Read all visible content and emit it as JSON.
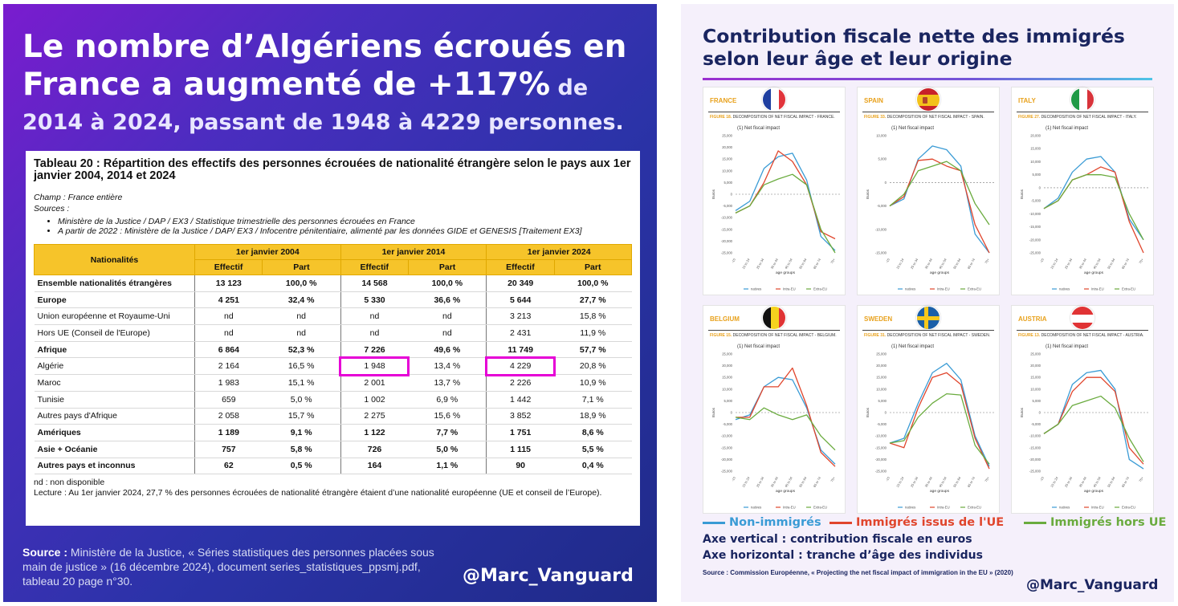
{
  "left": {
    "headline_line1": "Le nombre d’Algériens écroués en",
    "headline_line2": "France a augmenté de +117%",
    "headline_tail": " de",
    "headline_line3": "2014 à 2024, passant de 1948 à 4229 personnes.",
    "doc": {
      "title": "Tableau 20 : Répartition des effectifs des personnes écrouées de nationalité étrangère selon le pays aux 1er janvier 2004, 2014 et 2024",
      "champ": "Champ : France entière",
      "sources_label": "Sources :",
      "sources": [
        "Ministère de la Justice / DAP / EX3 / Statistique trimestrielle des personnes écrouées en France",
        "A partir de 2022 : Ministère de la Justice / DAP/ EX3 / Infocentre pénitentiaire, alimenté par les données GIDE et GENESIS [Traitement EX3]"
      ],
      "table": {
        "col_nat": "Nationalités",
        "years": [
          "1er janvier 2004",
          "1er janvier 2014",
          "1er janvier 2024"
        ],
        "sub_effectif": "Effectif",
        "sub_part": "Part",
        "rows": [
          {
            "label": "Ensemble nationalités étrangères",
            "bold": true,
            "v": [
              "13 123",
              "100,0 %",
              "14 568",
              "100,0 %",
              "20 349",
              "100,0 %"
            ]
          },
          {
            "label": "Europe",
            "bold": true,
            "v": [
              "4 251",
              "32,4 %",
              "5 330",
              "36,6 %",
              "5 644",
              "27,7 %"
            ]
          },
          {
            "label": "Union européenne et Royaume-Uni",
            "bold": false,
            "v": [
              "nd",
              "nd",
              "nd",
              "nd",
              "3 213",
              "15,8 %"
            ]
          },
          {
            "label": "Hors UE (Conseil de l'Europe)",
            "bold": false,
            "v": [
              "nd",
              "nd",
              "nd",
              "nd",
              "2 431",
              "11,9 %"
            ]
          },
          {
            "label": "Afrique",
            "bold": true,
            "v": [
              "6 864",
              "52,3 %",
              "7 226",
              "49,6 %",
              "11 749",
              "57,7 %"
            ]
          },
          {
            "label": "Algérie",
            "bold": false,
            "v": [
              "2 164",
              "16,5 %",
              "1 948",
              "13,4 %",
              "4 229",
              "20,8 %"
            ]
          },
          {
            "label": "Maroc",
            "bold": false,
            "v": [
              "1 983",
              "15,1 %",
              "2 001",
              "13,7 %",
              "2 226",
              "10,9 %"
            ]
          },
          {
            "label": "Tunisie",
            "bold": false,
            "v": [
              "659",
              "5,0 %",
              "1 002",
              "6,9 %",
              "1 442",
              "7,1 %"
            ]
          },
          {
            "label": "Autres pays d'Afrique",
            "bold": false,
            "v": [
              "2 058",
              "15,7 %",
              "2 275",
              "15,6 %",
              "3 852",
              "18,9 %"
            ]
          },
          {
            "label": "Amériques",
            "bold": true,
            "v": [
              "1 189",
              "9,1 %",
              "1 122",
              "7,7 %",
              "1 751",
              "8,6 %"
            ]
          },
          {
            "label": "Asie + Océanie",
            "bold": true,
            "v": [
              "757",
              "5,8 %",
              "726",
              "5,0 %",
              "1 115",
              "5,5 %"
            ]
          },
          {
            "label": "Autres pays et inconnus",
            "bold": true,
            "v": [
              "62",
              "0,5 %",
              "164",
              "1,1 %",
              "90",
              "0,4 %"
            ]
          }
        ]
      },
      "nd_note": "nd : non disponible",
      "lecture": "Lecture : Au 1er janvier 2024, 27,7 % des personnes écrouées de nationalité étrangère étaient d’une nationalité européenne (UE et conseil de l’Europe)."
    },
    "source_label": "Source :",
    "source_text": " Ministère de la Justice, « Séries statistiques des personnes placées sous main de justice » (16 décembre 2024), document series_statistiques_ppsmj.pdf, tableau 20 page n°30.",
    "handle": "@Marc_Vanguard"
  },
  "right": {
    "title_line1": "Contribution fiscale nette des immigrés",
    "title_line2": "selon leur âge et leur origine",
    "card_subtitle": "(1) Net fiscal impact",
    "x_axis_label": "age groups",
    "y_axis_label": "Euros",
    "legend_mini": [
      "natives",
      "Intra-EU",
      "Extra-EU"
    ],
    "series_colors": [
      "#3a9bd5",
      "#e0452c",
      "#6aab3e"
    ],
    "cards": [
      {
        "name": "FRANCE",
        "fig": "FIGURE 18.",
        "fig_text": "DECOMPOSITION OF NET FISCAL IMPACT - FRANCE.",
        "flag": "fr"
      },
      {
        "name": "SPAIN",
        "fig": "FIGURE 33.",
        "fig_text": "DECOMPOSITION OF NET FISCAL IMPACT - SPAIN.",
        "flag": "es"
      },
      {
        "name": "ITALY",
        "fig": "FIGURE 27.",
        "fig_text": "DECOMPOSITION OF NET FISCAL IMPACT - ITALY.",
        "flag": "it"
      },
      {
        "name": "BELGIUM",
        "fig": "FIGURE 15.",
        "fig_text": "DECOMPOSITION OF NET FISCAL IMPACT - BELGIUM.",
        "flag": "be"
      },
      {
        "name": "SWEDEN",
        "fig": "FIGURE 31.",
        "fig_text": "DECOMPOSITION OF NET FISCAL IMPACT - SWEDEN.",
        "flag": "se"
      },
      {
        "name": "AUSTRIA",
        "fig": "FIGURE 13.",
        "fig_text": "DECOMPOSITION OF NET FISCAL IMPACT - AUSTRIA.",
        "flag": "at"
      }
    ],
    "legend": [
      {
        "label": "Non-immigrés",
        "color": "#3a9bd5"
      },
      {
        "label": "Immigrés issus de l'UE",
        "color": "#e0452c"
      },
      {
        "label": "Immigrés hors UE",
        "color": "#6aab3e"
      }
    ],
    "axis_vertical": "Axe vertical : contribution fiscale en euros",
    "axis_horizontal": "Axe horizontal : tranche d’âge des individus",
    "source": "Source : Commission Européenne, « Projecting the net fiscal impact of immigration in the EU » (2020)",
    "handle": "@Marc_Vanguard"
  },
  "chart_data": [
    {
      "type": "line",
      "title": "FRANCE",
      "ylabel": "Euros",
      "xlabel": "age groups",
      "categories": [
        "-15",
        "15 to 24",
        "25 to 34",
        "35 to 44",
        "45 to 54",
        "55 to 64",
        "65 to 74",
        "75+"
      ],
      "ylim": [
        -25000,
        25000
      ],
      "yticks": [
        -25000,
        -20000,
        -15000,
        -10000,
        -5000,
        0,
        5000,
        10000,
        15000,
        20000,
        25000
      ],
      "series": [
        {
          "name": "natives",
          "values": [
            -7000,
            -3000,
            11000,
            16000,
            17500,
            6000,
            -18000,
            -24000
          ]
        },
        {
          "name": "Intra-EU",
          "values": [
            -8000,
            -5000,
            5000,
            18500,
            14000,
            4000,
            -16000,
            -19000
          ]
        },
        {
          "name": "Extra-EU",
          "values": [
            -8000,
            -5000,
            4000,
            6500,
            8500,
            4000,
            -15000,
            -25000
          ]
        }
      ]
    },
    {
      "type": "line",
      "title": "SPAIN",
      "ylabel": "Euros",
      "xlabel": "age groups",
      "categories": [
        "-15",
        "15 to 24",
        "25 to 34",
        "35 to 44",
        "45 to 54",
        "55 to 64",
        "65 to 74",
        "75+"
      ],
      "ylim": [
        -15000,
        10000
      ],
      "yticks": [
        -15000,
        -10000,
        -5000,
        0,
        5000,
        10000
      ],
      "series": [
        {
          "name": "natives",
          "values": [
            -5000,
            -3500,
            5000,
            7800,
            7000,
            3500,
            -11000,
            -15000
          ]
        },
        {
          "name": "Intra-EU",
          "values": [
            -5000,
            -3000,
            4700,
            5000,
            3500,
            2500,
            -9000,
            -15000
          ]
        },
        {
          "name": "Extra-EU",
          "values": [
            -5000,
            -2500,
            2500,
            3500,
            4500,
            2500,
            -4500,
            -9000
          ]
        }
      ]
    },
    {
      "type": "line",
      "title": "ITALY",
      "ylabel": "Euros",
      "xlabel": "age groups",
      "categories": [
        "-15",
        "15 to 24",
        "25 to 34",
        "35 to 44",
        "45 to 54",
        "55 to 64",
        "65 to 74",
        "75+"
      ],
      "ylim": [
        -25000,
        20000
      ],
      "yticks": [
        -25000,
        -20000,
        -15000,
        -10000,
        -5000,
        0,
        5000,
        10000,
        15000,
        20000
      ],
      "series": [
        {
          "name": "natives",
          "values": [
            -8000,
            -4000,
            6000,
            11000,
            12000,
            6000,
            -12000,
            -20000
          ]
        },
        {
          "name": "Intra-EU",
          "values": [
            -8000,
            -5000,
            3000,
            5000,
            8000,
            6000,
            -13000,
            -25000
          ]
        },
        {
          "name": "Extra-EU",
          "values": [
            -8000,
            -5000,
            3000,
            5000,
            5000,
            4000,
            -10000,
            -20000
          ]
        }
      ]
    },
    {
      "type": "line",
      "title": "BELGIUM",
      "ylabel": "Euros",
      "xlabel": "age groups",
      "categories": [
        "-15",
        "15 to 24",
        "25 to 34",
        "35 to 44",
        "45 to 54",
        "55 to 64",
        "65 to 74",
        "75+"
      ],
      "ylim": [
        -25000,
        25000
      ],
      "yticks": [
        -25000,
        -20000,
        -15000,
        -10000,
        -5000,
        0,
        5000,
        10000,
        15000,
        20000,
        25000
      ],
      "series": [
        {
          "name": "natives",
          "values": [
            -3000,
            -1000,
            11000,
            15000,
            14000,
            2000,
            -16000,
            -22000
          ]
        },
        {
          "name": "Intra-EU",
          "values": [
            -2000,
            -2000,
            11000,
            11000,
            19000,
            3000,
            -17000,
            -23000
          ]
        },
        {
          "name": "Extra-EU",
          "values": [
            -2000,
            -3000,
            2000,
            -1000,
            -3000,
            -1000,
            -10000,
            -16000
          ]
        }
      ]
    },
    {
      "type": "line",
      "title": "SWEDEN",
      "ylabel": "Euros",
      "xlabel": "age groups",
      "categories": [
        "-15",
        "15 to 24",
        "25 to 34",
        "35 to 44",
        "45 to 54",
        "55 to 64",
        "65 to 74",
        "75+"
      ],
      "ylim": [
        -25000,
        25000
      ],
      "yticks": [
        -25000,
        -20000,
        -15000,
        -10000,
        -5000,
        0,
        5000,
        10000,
        15000,
        20000,
        25000
      ],
      "series": [
        {
          "name": "natives",
          "values": [
            -13000,
            -11000,
            4000,
            17000,
            21000,
            14000,
            -10000,
            -23000
          ]
        },
        {
          "name": "Intra-EU",
          "values": [
            -13000,
            -15000,
            2000,
            15000,
            17000,
            12000,
            -11000,
            -24000
          ]
        },
        {
          "name": "Extra-EU",
          "values": [
            -13000,
            -12000,
            -2000,
            4000,
            8000,
            7500,
            -14000,
            -22000
          ]
        }
      ]
    },
    {
      "type": "line",
      "title": "AUSTRIA",
      "ylabel": "Euros",
      "xlabel": "age groups",
      "categories": [
        "-15",
        "15 to 24",
        "25 to 34",
        "35 to 44",
        "45 to 54",
        "55 to 64",
        "65 to 74",
        "75+"
      ],
      "ylim": [
        -25000,
        25000
      ],
      "yticks": [
        -25000,
        -20000,
        -15000,
        -10000,
        -5000,
        0,
        5000,
        10000,
        15000,
        20000,
        25000
      ],
      "series": [
        {
          "name": "natives",
          "values": [
            -9000,
            -5000,
            12000,
            17000,
            18000,
            10000,
            -20000,
            -24000
          ]
        },
        {
          "name": "Intra-EU",
          "values": [
            -9000,
            -5000,
            9000,
            15000,
            15000,
            9000,
            -15000,
            -22000
          ]
        },
        {
          "name": "Extra-EU",
          "values": [
            -9000,
            -5000,
            3000,
            5000,
            7000,
            2000,
            -11000,
            -21000
          ]
        }
      ]
    }
  ]
}
